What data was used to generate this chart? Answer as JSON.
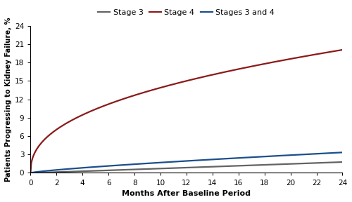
{
  "title": "",
  "xlabel": "Months After Baseline Period",
  "ylabel": "Patients Progressing to Kidney Failure, %",
  "xlim": [
    0,
    24
  ],
  "ylim": [
    0,
    24
  ],
  "xticks": [
    0,
    2,
    4,
    6,
    8,
    10,
    12,
    14,
    16,
    18,
    20,
    22,
    24
  ],
  "yticks": [
    0,
    3,
    6,
    9,
    12,
    15,
    18,
    21,
    24
  ],
  "stage3_color": "#636363",
  "stage4_color": "#8B1A1A",
  "stage34_color": "#1B4F8A",
  "stage3_end": 1.77,
  "stage4_end": 20.09,
  "stage34_end": 3.34,
  "stage4_power": 0.42,
  "stage3_power": 1.05,
  "stage34_power": 0.78,
  "legend_labels": [
    "Stage 3",
    "Stage 4",
    "Stages 3 and 4"
  ],
  "line_width": 1.6,
  "bg_color": "#ffffff"
}
